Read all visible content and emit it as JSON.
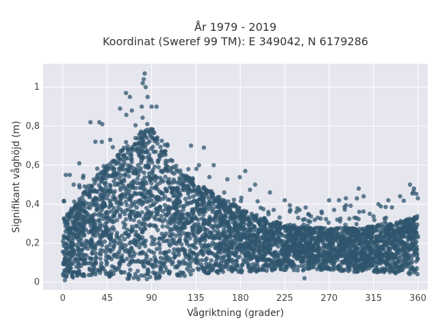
{
  "chart_data": {
    "type": "scatter",
    "title": "År 1979 - 2019",
    "subtitle": "Koordinat (Sweref 99 TM): E 349042, N 6179286",
    "xlabel": "Vågriktning (grader)",
    "ylabel": "Signifikant våghöjd (m)",
    "xlim": [
      -20,
      370
    ],
    "ylim": [
      -0.04,
      1.12
    ],
    "x_ticks": [
      0,
      45,
      90,
      135,
      180,
      225,
      270,
      315,
      360
    ],
    "y_ticks": [
      0,
      0.2,
      0.4,
      0.6,
      0.8,
      1
    ],
    "y_tick_labels": [
      "0",
      "0,2",
      "0,4",
      "0,6",
      "0,8",
      "1"
    ],
    "grid": true,
    "legend": "none",
    "point_color": "#2f566e",
    "background_color": "#e6e6ef",
    "envelope": {
      "x": [
        0,
        15,
        30,
        45,
        60,
        75,
        85,
        90,
        100,
        115,
        135,
        150,
        165,
        180,
        200,
        225,
        250,
        270,
        300,
        330,
        345,
        360
      ],
      "y_min": [
        0.01,
        0.03,
        0.03,
        0.03,
        0.01,
        0.01,
        0.01,
        0.01,
        0.02,
        0.03,
        0.03,
        0.04,
        0.05,
        0.05,
        0.05,
        0.06,
        0.06,
        0.06,
        0.05,
        0.05,
        0.04,
        0.04
      ],
      "y_dense_max": [
        0.32,
        0.42,
        0.52,
        0.6,
        0.68,
        0.76,
        0.82,
        0.8,
        0.7,
        0.6,
        0.52,
        0.46,
        0.42,
        0.38,
        0.33,
        0.3,
        0.28,
        0.28,
        0.28,
        0.3,
        0.32,
        0.34
      ],
      "y_max": [
        0.55,
        0.6,
        0.82,
        0.8,
        0.9,
        0.97,
        1.07,
        0.95,
        0.8,
        0.72,
        0.69,
        0.62,
        0.57,
        0.57,
        0.46,
        0.42,
        0.42,
        0.45,
        0.48,
        0.44,
        0.48,
        0.5
      ]
    },
    "outliers": [
      {
        "x": 3,
        "y": 0.55
      },
      {
        "x": 7,
        "y": 0.55
      },
      {
        "x": 11,
        "y": 0.5
      },
      {
        "x": 28,
        "y": 0.82
      },
      {
        "x": 37,
        "y": 0.82
      },
      {
        "x": 40,
        "y": 0.81
      },
      {
        "x": 33,
        "y": 0.72
      },
      {
        "x": 48,
        "y": 0.73
      },
      {
        "x": 58,
        "y": 0.89
      },
      {
        "x": 64,
        "y": 0.97
      },
      {
        "x": 68,
        "y": 0.95
      },
      {
        "x": 70,
        "y": 0.88
      },
      {
        "x": 80,
        "y": 0.9
      },
      {
        "x": 81,
        "y": 1.02
      },
      {
        "x": 82,
        "y": 1.04
      },
      {
        "x": 83,
        "y": 1.07
      },
      {
        "x": 84,
        "y": 1.0
      },
      {
        "x": 86,
        "y": 0.95
      },
      {
        "x": 90,
        "y": 0.9
      },
      {
        "x": 95,
        "y": 0.9
      },
      {
        "x": 130,
        "y": 0.7
      },
      {
        "x": 143,
        "y": 0.69
      },
      {
        "x": 138,
        "y": 0.6
      },
      {
        "x": 153,
        "y": 0.6
      },
      {
        "x": 185,
        "y": 0.57
      },
      {
        "x": 195,
        "y": 0.5
      },
      {
        "x": 210,
        "y": 0.46
      },
      {
        "x": 225,
        "y": 0.42
      },
      {
        "x": 240,
        "y": 0.37
      },
      {
        "x": 270,
        "y": 0.42
      },
      {
        "x": 280,
        "y": 0.42
      },
      {
        "x": 287,
        "y": 0.43
      },
      {
        "x": 300,
        "y": 0.48
      },
      {
        "x": 305,
        "y": 0.44
      },
      {
        "x": 320,
        "y": 0.4
      },
      {
        "x": 330,
        "y": 0.42
      },
      {
        "x": 342,
        "y": 0.44
      },
      {
        "x": 352,
        "y": 0.5
      },
      {
        "x": 356,
        "y": 0.48
      },
      {
        "x": 360,
        "y": 0.43
      },
      {
        "x": 245,
        "y": 0.02
      },
      {
        "x": 2,
        "y": 0.01
      }
    ]
  }
}
